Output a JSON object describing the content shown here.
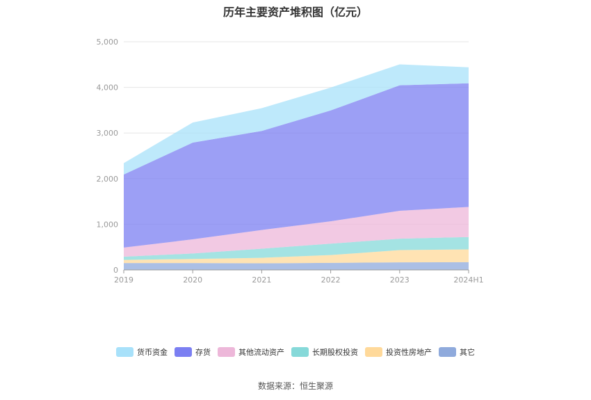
{
  "chart_data": {
    "type": "area",
    "title": "历年主要资产堆积图（亿元）",
    "stacked": true,
    "categories": [
      "2019",
      "2020",
      "2021",
      "2022",
      "2023",
      "2024H1"
    ],
    "ylim": [
      0,
      5000
    ],
    "yticks": [
      "0",
      "1,000",
      "2,000",
      "3,000",
      "4,000",
      "5,000"
    ],
    "grid": true,
    "legend_position": "bottom",
    "series": [
      {
        "name": "其它",
        "color": "#8faadc",
        "values": [
          150,
          150,
          145,
          155,
          165,
          170
        ]
      },
      {
        "name": "投资性房地产",
        "color": "#ffd99a",
        "values": [
          70,
          90,
          120,
          170,
          270,
          280
        ]
      },
      {
        "name": "长期股权投资",
        "color": "#86d9d9",
        "values": [
          70,
          120,
          200,
          250,
          250,
          270
        ]
      },
      {
        "name": "其他流动资产",
        "color": "#edb7d9",
        "values": [
          200,
          310,
          410,
          490,
          610,
          660
        ]
      },
      {
        "name": "存货",
        "color": "#7b7ff2",
        "values": [
          1600,
          2120,
          2170,
          2430,
          2750,
          2710
        ]
      },
      {
        "name": "货币资金",
        "color": "#a8e1fa",
        "values": [
          250,
          440,
          500,
          500,
          460,
          350
        ]
      }
    ],
    "legend_order": [
      "货币资金",
      "存货",
      "其他流动资产",
      "长期股权投资",
      "投资性房地产",
      "其它"
    ]
  },
  "source_text": "数据来源：恒生聚源"
}
